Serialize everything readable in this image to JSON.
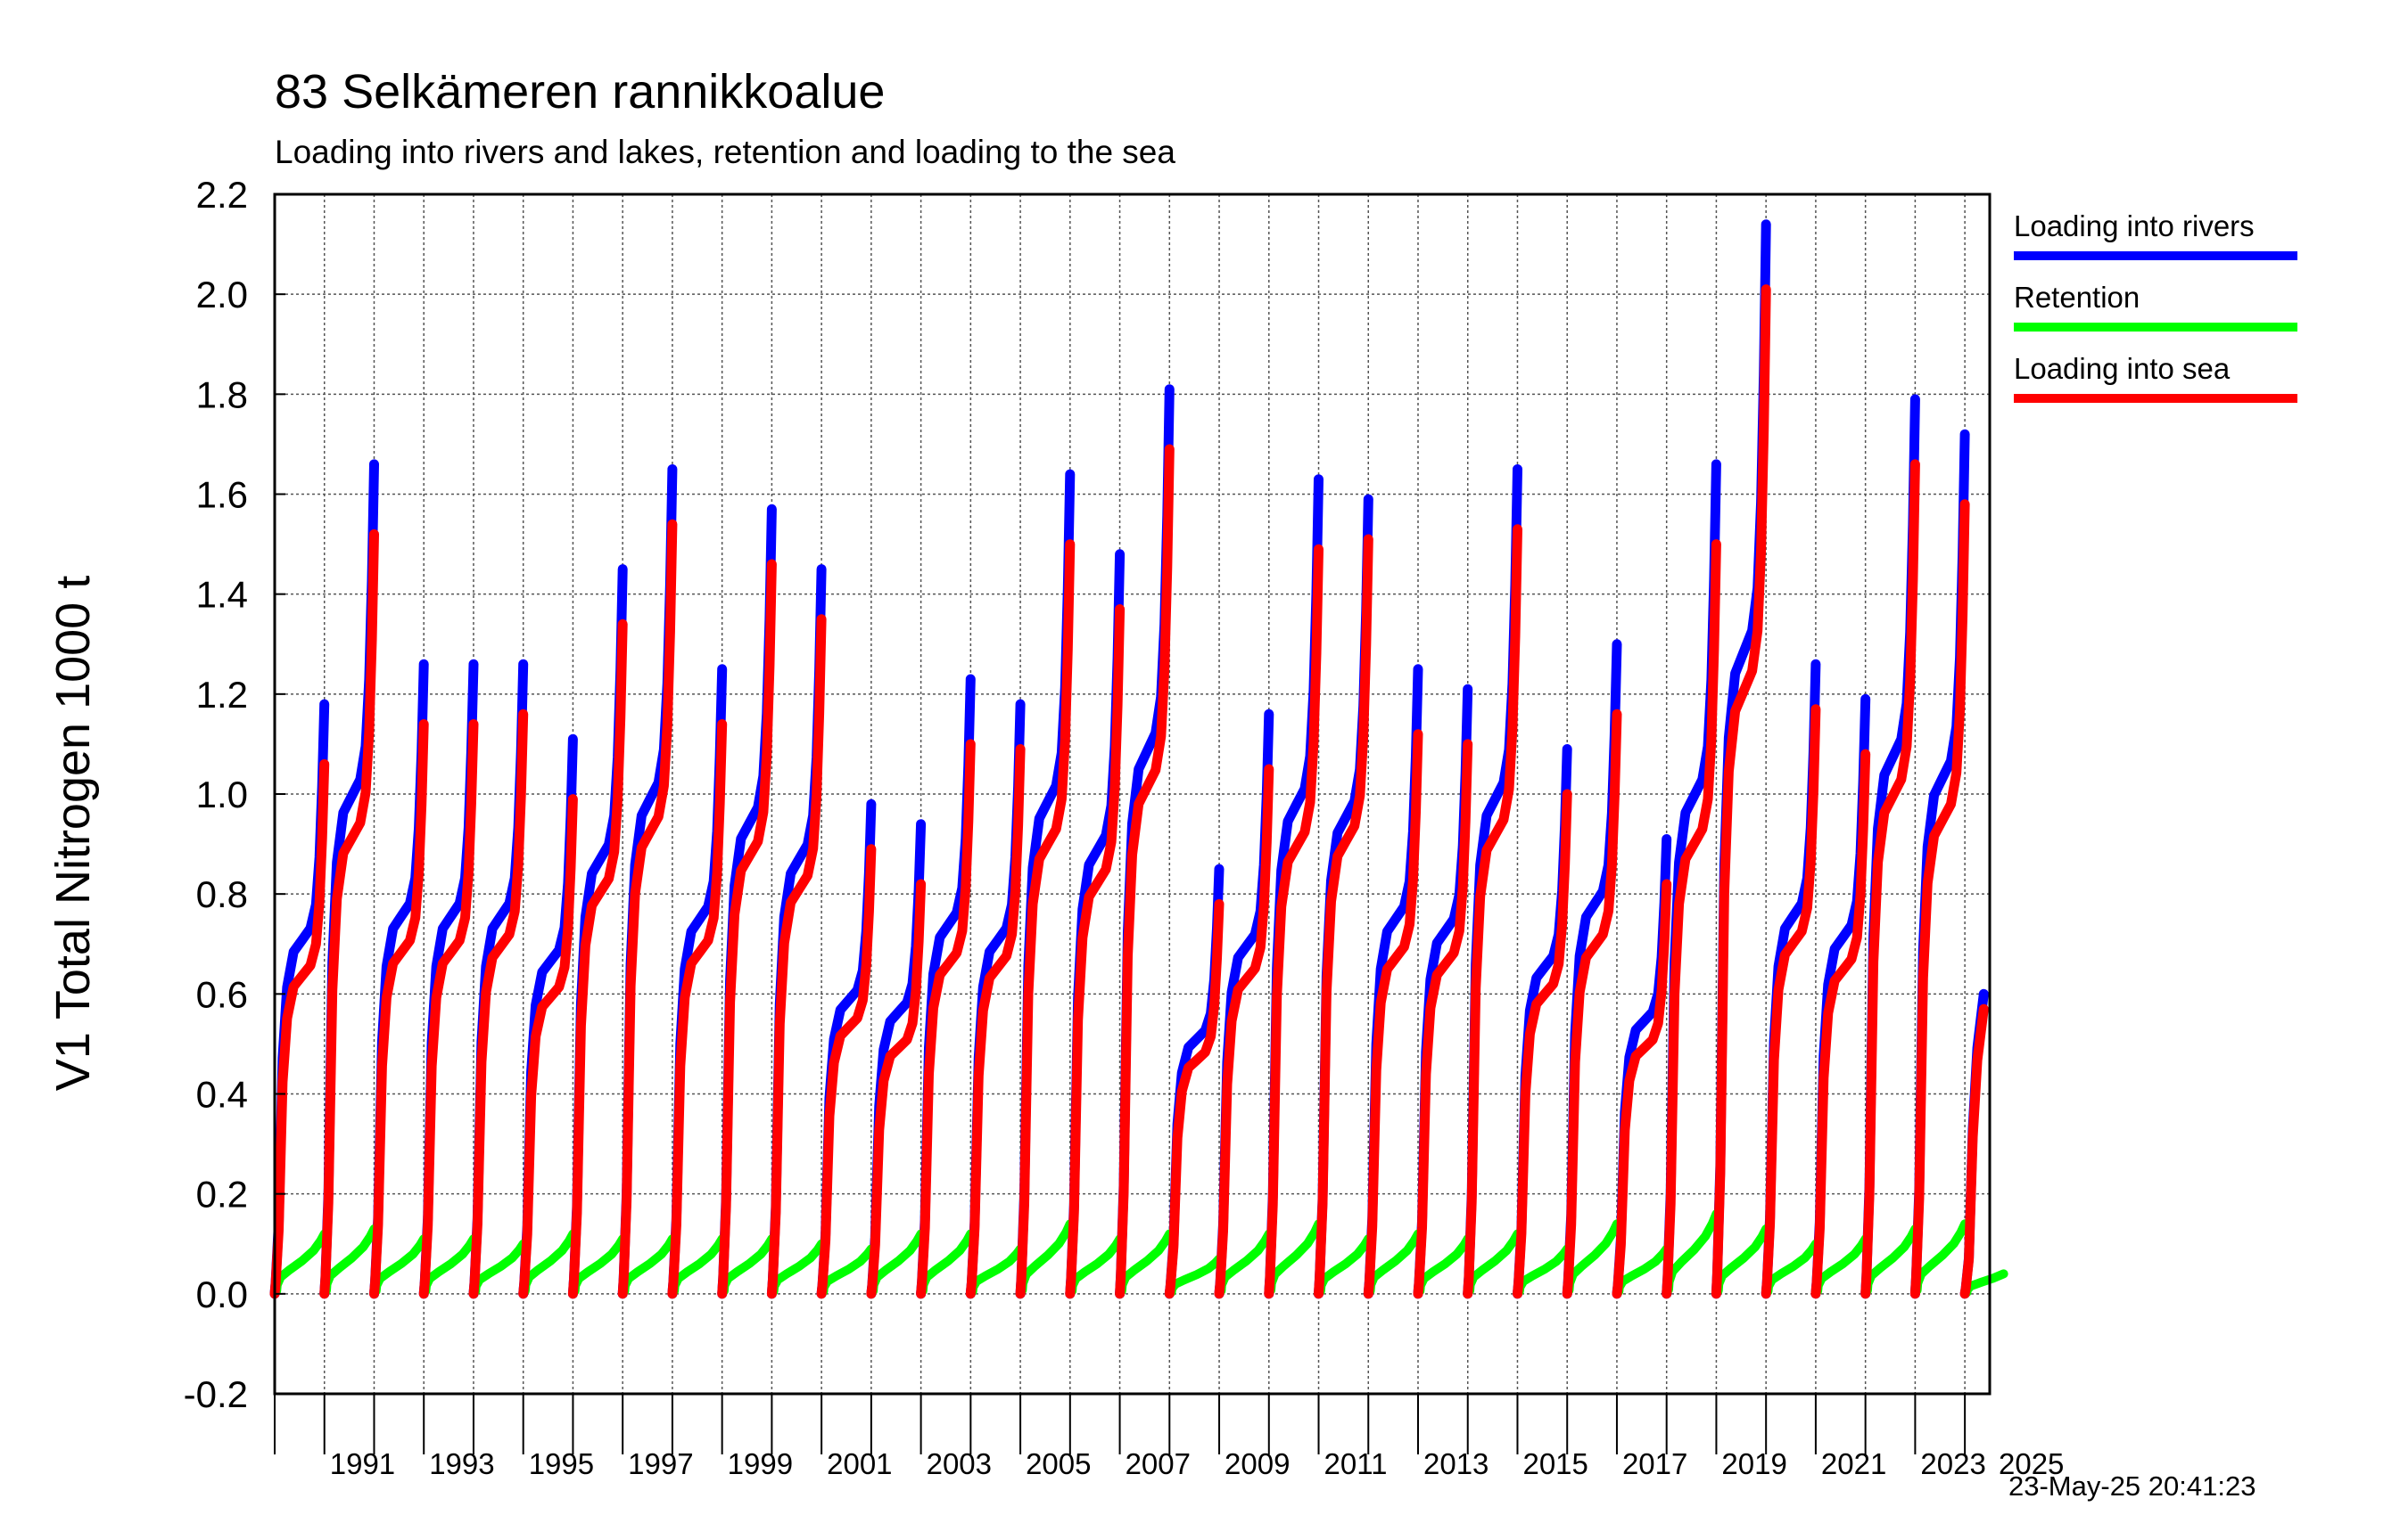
{
  "chart_data": {
    "type": "line",
    "title": "83 Selkämeren rannikkoalue",
    "subtitle": "Loading into rivers and lakes, retention and loading to the sea",
    "ylabel": "V1 Total Nitrogen 1000 t",
    "xlabel": "",
    "ylim": [
      -0.2,
      2.2
    ],
    "xlim": [
      1990,
      2024.5
    ],
    "yticks": [
      "-0.2",
      "0.0",
      "0.2",
      "0.4",
      "0.6",
      "0.8",
      "1.0",
      "1.2",
      "1.4",
      "1.6",
      "1.8",
      "2.0",
      "2.2"
    ],
    "xticks": [
      "1991",
      "1993",
      "1995",
      "1997",
      "1999",
      "2001",
      "2003",
      "2005",
      "2007",
      "2009",
      "2011",
      "2013",
      "2015",
      "2017",
      "2019",
      "2021",
      "2023",
      "2025"
    ],
    "grid": true,
    "legend_position": "right",
    "timestamp": "23-May-25 20:41:23",
    "series": [
      {
        "name": "Loading into rivers",
        "color": "#0000ff",
        "unit": "annual cumulative, 1000 t",
        "annual_totals": [
          1.18,
          1.66,
          1.26,
          1.26,
          1.26,
          1.11,
          1.45,
          1.65,
          1.25,
          1.57,
          1.45,
          0.98,
          0.94,
          1.23,
          1.18,
          1.64,
          1.48,
          1.81,
          0.85,
          1.16,
          1.63,
          1.59,
          1.25,
          1.21,
          1.65,
          1.09,
          1.3,
          0.91,
          1.66,
          2.14,
          1.26,
          1.19,
          1.79,
          1.72,
          0.6
        ]
      },
      {
        "name": "Retention",
        "color": "#00ff00",
        "unit": "annual cumulative, 1000 t",
        "annual_totals": [
          0.12,
          0.13,
          0.11,
          0.11,
          0.1,
          0.12,
          0.11,
          0.11,
          0.11,
          0.11,
          0.1,
          0.09,
          0.12,
          0.12,
          0.09,
          0.14,
          0.11,
          0.12,
          0.07,
          0.12,
          0.14,
          0.11,
          0.12,
          0.11,
          0.12,
          0.09,
          0.14,
          0.09,
          0.16,
          0.13,
          0.1,
          0.11,
          0.13,
          0.14,
          0.04
        ]
      },
      {
        "name": "Loading into sea",
        "color": "#ff0000",
        "unit": "annual cumulative, 1000 t",
        "annual_totals": [
          1.06,
          1.52,
          1.14,
          1.14,
          1.16,
          0.99,
          1.34,
          1.54,
          1.14,
          1.46,
          1.35,
          0.89,
          0.82,
          1.1,
          1.09,
          1.5,
          1.37,
          1.69,
          0.78,
          1.05,
          1.49,
          1.51,
          1.12,
          1.1,
          1.53,
          1.0,
          1.16,
          0.82,
          1.5,
          2.01,
          1.17,
          1.08,
          1.66,
          1.58,
          0.57
        ]
      }
    ]
  }
}
